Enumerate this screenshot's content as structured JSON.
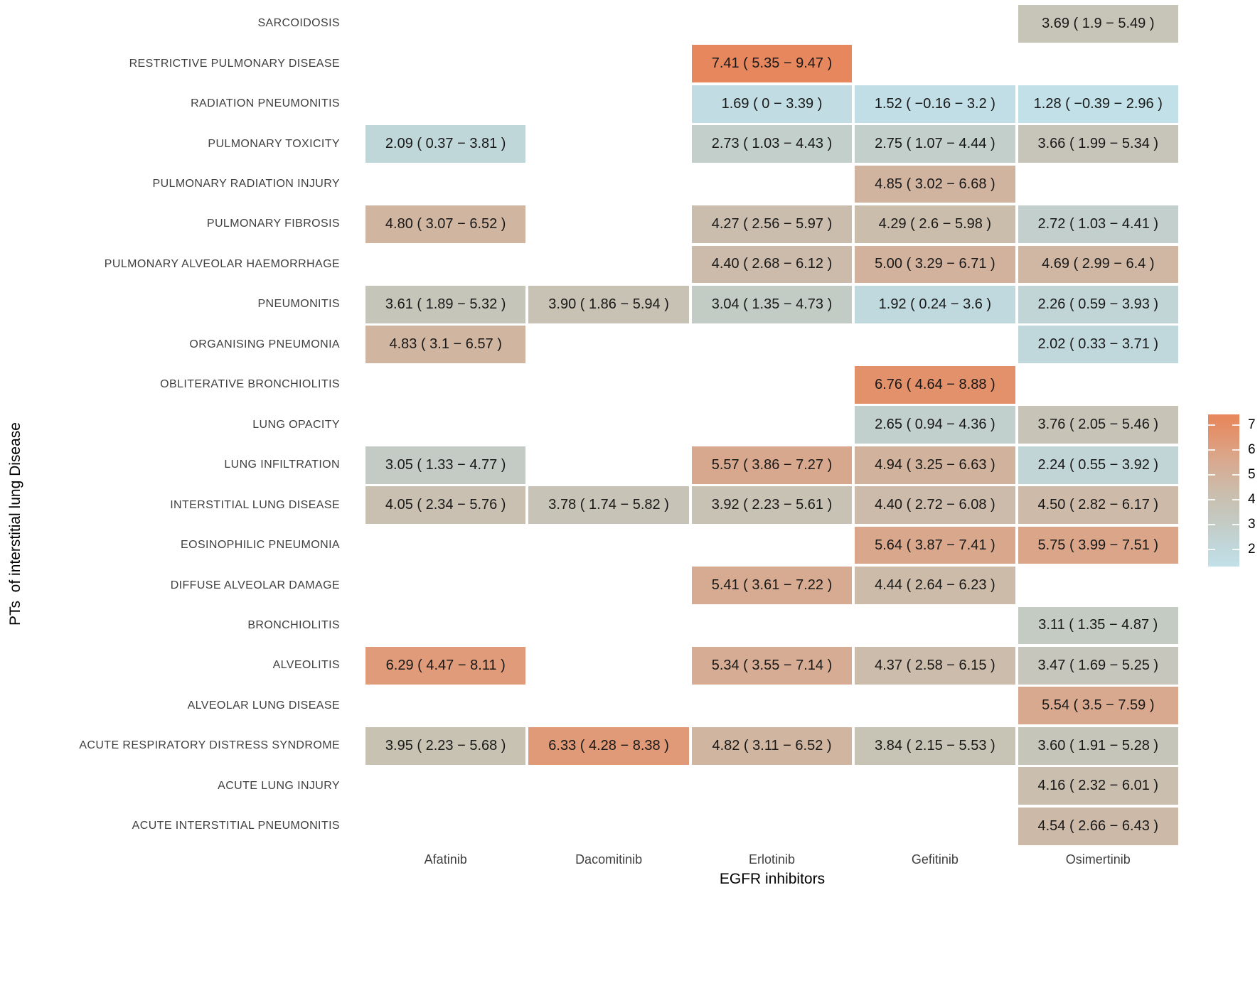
{
  "figure": {
    "x_axis_title": "EGFR inhibitors",
    "y_axis_title": "PTs  of interstitial lung Disease"
  },
  "chart_data": {
    "type": "heatmap",
    "title": "",
    "xlabel": "EGFR inhibitors",
    "ylabel": "PTs  of interstitial lung Disease",
    "columns": [
      "Afatinib",
      "Dacomitinib",
      "Erlotinib",
      "Gefitinib",
      "Osimertinib"
    ],
    "rows": [
      "SARCOIDOSIS",
      "RESTRICTIVE PULMONARY DISEASE",
      "RADIATION PNEUMONITIS",
      "PULMONARY TOXICITY",
      "PULMONARY RADIATION INJURY",
      "PULMONARY FIBROSIS",
      "PULMONARY ALVEOLAR HAEMORRHAGE",
      "PNEUMONITIS",
      "ORGANISING PNEUMONIA",
      "OBLITERATIVE BRONCHIOLITIS",
      "LUNG OPACITY",
      "LUNG INFILTRATION",
      "INTERSTITIAL LUNG DISEASE",
      "EOSINOPHILIC PNEUMONIA",
      "DIFFUSE ALVEOLAR DAMAGE",
      "BRONCHIOLITIS",
      "ALVEOLITIS",
      "ALVEOLAR LUNG DISEASE",
      "ACUTE RESPIRATORY DISTRESS SYNDROME",
      "ACUTE LUNG INJURY",
      "ACUTE INTERSTITIAL PNEUMONITIS"
    ],
    "legend": {
      "position": "right",
      "orientation": "vertical",
      "ticks": [
        7,
        6,
        5,
        4,
        3,
        2
      ],
      "value_top": 7.44,
      "value_bottom": 1.32
    },
    "colormap": [
      [
        1.3,
        "#c2e0e8"
      ],
      [
        1.5,
        "#c1dee6"
      ],
      [
        2.0,
        "#c0d8dc"
      ],
      [
        2.5,
        "#c2d2d1"
      ],
      [
        3.0,
        "#c3ccc5"
      ],
      [
        3.5,
        "#c6c6bc"
      ],
      [
        4.0,
        "#c8c1b2"
      ],
      [
        4.5,
        "#cdbaa8"
      ],
      [
        5.0,
        "#d2b29c"
      ],
      [
        6.0,
        "#dda183"
      ],
      [
        7.0,
        "#e58c63"
      ],
      [
        7.5,
        "#e8865c"
      ]
    ],
    "cells": [
      {
        "row": "SARCOIDOSIS",
        "col": "Osimertinib",
        "value": 3.69,
        "ci_low": 1.9,
        "ci_high": 5.49,
        "label": "3.69 ( 1.9 − 5.49 )"
      },
      {
        "row": "RESTRICTIVE PULMONARY DISEASE",
        "col": "Erlotinib",
        "value": 7.41,
        "ci_low": 5.35,
        "ci_high": 9.47,
        "label": "7.41 ( 5.35 − 9.47 )"
      },
      {
        "row": "RADIATION PNEUMONITIS",
        "col": "Erlotinib",
        "value": 1.69,
        "ci_low": 0,
        "ci_high": 3.39,
        "label": "1.69 ( 0 − 3.39 )"
      },
      {
        "row": "RADIATION PNEUMONITIS",
        "col": "Gefitinib",
        "value": 1.52,
        "ci_low": -0.16,
        "ci_high": 3.2,
        "label": "1.52 ( −0.16 − 3.2 )"
      },
      {
        "row": "RADIATION PNEUMONITIS",
        "col": "Osimertinib",
        "value": 1.28,
        "ci_low": -0.39,
        "ci_high": 2.96,
        "label": "1.28 ( −0.39 − 2.96 )"
      },
      {
        "row": "PULMONARY TOXICITY",
        "col": "Afatinib",
        "value": 2.09,
        "ci_low": 0.37,
        "ci_high": 3.81,
        "label": "2.09 ( 0.37 − 3.81 )"
      },
      {
        "row": "PULMONARY TOXICITY",
        "col": "Erlotinib",
        "value": 2.73,
        "ci_low": 1.03,
        "ci_high": 4.43,
        "label": "2.73 ( 1.03 − 4.43 )"
      },
      {
        "row": "PULMONARY TOXICITY",
        "col": "Gefitinib",
        "value": 2.75,
        "ci_low": 1.07,
        "ci_high": 4.44,
        "label": "2.75 ( 1.07 − 4.44 )"
      },
      {
        "row": "PULMONARY TOXICITY",
        "col": "Osimertinib",
        "value": 3.66,
        "ci_low": 1.99,
        "ci_high": 5.34,
        "label": "3.66 ( 1.99 − 5.34 )"
      },
      {
        "row": "PULMONARY RADIATION INJURY",
        "col": "Gefitinib",
        "value": 4.85,
        "ci_low": 3.02,
        "ci_high": 6.68,
        "label": "4.85 ( 3.02 − 6.68 )"
      },
      {
        "row": "PULMONARY FIBROSIS",
        "col": "Afatinib",
        "value": 4.8,
        "ci_low": 3.07,
        "ci_high": 6.52,
        "label": "4.80 ( 3.07 − 6.52 )"
      },
      {
        "row": "PULMONARY FIBROSIS",
        "col": "Erlotinib",
        "value": 4.27,
        "ci_low": 2.56,
        "ci_high": 5.97,
        "label": "4.27 ( 2.56 − 5.97 )"
      },
      {
        "row": "PULMONARY FIBROSIS",
        "col": "Gefitinib",
        "value": 4.29,
        "ci_low": 2.6,
        "ci_high": 5.98,
        "label": "4.29 ( 2.6 − 5.98 )"
      },
      {
        "row": "PULMONARY FIBROSIS",
        "col": "Osimertinib",
        "value": 2.72,
        "ci_low": 1.03,
        "ci_high": 4.41,
        "label": "2.72 ( 1.03 − 4.41 )"
      },
      {
        "row": "PULMONARY ALVEOLAR HAEMORRHAGE",
        "col": "Erlotinib",
        "value": 4.4,
        "ci_low": 2.68,
        "ci_high": 6.12,
        "label": "4.40 ( 2.68 − 6.12 )"
      },
      {
        "row": "PULMONARY ALVEOLAR HAEMORRHAGE",
        "col": "Gefitinib",
        "value": 5.0,
        "ci_low": 3.29,
        "ci_high": 6.71,
        "label": "5.00 ( 3.29 − 6.71 )"
      },
      {
        "row": "PULMONARY ALVEOLAR HAEMORRHAGE",
        "col": "Osimertinib",
        "value": 4.69,
        "ci_low": 2.99,
        "ci_high": 6.4,
        "label": "4.69 ( 2.99 − 6.4 )"
      },
      {
        "row": "PNEUMONITIS",
        "col": "Afatinib",
        "value": 3.61,
        "ci_low": 1.89,
        "ci_high": 5.32,
        "label": "3.61 ( 1.89 − 5.32 )"
      },
      {
        "row": "PNEUMONITIS",
        "col": "Dacomitinib",
        "value": 3.9,
        "ci_low": 1.86,
        "ci_high": 5.94,
        "label": "3.90 ( 1.86 − 5.94 )"
      },
      {
        "row": "PNEUMONITIS",
        "col": "Erlotinib",
        "value": 3.04,
        "ci_low": 1.35,
        "ci_high": 4.73,
        "label": "3.04 ( 1.35 − 4.73 )"
      },
      {
        "row": "PNEUMONITIS",
        "col": "Gefitinib",
        "value": 1.92,
        "ci_low": 0.24,
        "ci_high": 3.6,
        "label": "1.92 ( 0.24 − 3.6 )"
      },
      {
        "row": "PNEUMONITIS",
        "col": "Osimertinib",
        "value": 2.26,
        "ci_low": 0.59,
        "ci_high": 3.93,
        "label": "2.26 ( 0.59 − 3.93 )"
      },
      {
        "row": "ORGANISING PNEUMONIA",
        "col": "Afatinib",
        "value": 4.83,
        "ci_low": 3.1,
        "ci_high": 6.57,
        "label": "4.83 ( 3.1 − 6.57 )"
      },
      {
        "row": "ORGANISING PNEUMONIA",
        "col": "Osimertinib",
        "value": 2.02,
        "ci_low": 0.33,
        "ci_high": 3.71,
        "label": "2.02 ( 0.33 − 3.71 )"
      },
      {
        "row": "OBLITERATIVE BRONCHIOLITIS",
        "col": "Gefitinib",
        "value": 6.76,
        "ci_low": 4.64,
        "ci_high": 8.88,
        "label": "6.76 ( 4.64 − 8.88 )"
      },
      {
        "row": "LUNG OPACITY",
        "col": "Gefitinib",
        "value": 2.65,
        "ci_low": 0.94,
        "ci_high": 4.36,
        "label": "2.65 ( 0.94 − 4.36 )"
      },
      {
        "row": "LUNG OPACITY",
        "col": "Osimertinib",
        "value": 3.76,
        "ci_low": 2.05,
        "ci_high": 5.46,
        "label": "3.76 ( 2.05 − 5.46 )"
      },
      {
        "row": "LUNG INFILTRATION",
        "col": "Afatinib",
        "value": 3.05,
        "ci_low": 1.33,
        "ci_high": 4.77,
        "label": "3.05 ( 1.33 − 4.77 )"
      },
      {
        "row": "LUNG INFILTRATION",
        "col": "Erlotinib",
        "value": 5.57,
        "ci_low": 3.86,
        "ci_high": 7.27,
        "label": "5.57 ( 3.86 − 7.27 )"
      },
      {
        "row": "LUNG INFILTRATION",
        "col": "Gefitinib",
        "value": 4.94,
        "ci_low": 3.25,
        "ci_high": 6.63,
        "label": "4.94 ( 3.25 − 6.63 )"
      },
      {
        "row": "LUNG INFILTRATION",
        "col": "Osimertinib",
        "value": 2.24,
        "ci_low": 0.55,
        "ci_high": 3.92,
        "label": "2.24 ( 0.55 − 3.92 )"
      },
      {
        "row": "INTERSTITIAL LUNG DISEASE",
        "col": "Afatinib",
        "value": 4.05,
        "ci_low": 2.34,
        "ci_high": 5.76,
        "label": "4.05 ( 2.34 − 5.76 )"
      },
      {
        "row": "INTERSTITIAL LUNG DISEASE",
        "col": "Dacomitinib",
        "value": 3.78,
        "ci_low": 1.74,
        "ci_high": 5.82,
        "label": "3.78 ( 1.74 − 5.82 )"
      },
      {
        "row": "INTERSTITIAL LUNG DISEASE",
        "col": "Erlotinib",
        "value": 3.92,
        "ci_low": 2.23,
        "ci_high": 5.61,
        "label": "3.92 ( 2.23 − 5.61 )"
      },
      {
        "row": "INTERSTITIAL LUNG DISEASE",
        "col": "Gefitinib",
        "value": 4.4,
        "ci_low": 2.72,
        "ci_high": 6.08,
        "label": "4.40 ( 2.72 − 6.08 )"
      },
      {
        "row": "INTERSTITIAL LUNG DISEASE",
        "col": "Osimertinib",
        "value": 4.5,
        "ci_low": 2.82,
        "ci_high": 6.17,
        "label": "4.50 ( 2.82 − 6.17 )"
      },
      {
        "row": "EOSINOPHILIC PNEUMONIA",
        "col": "Gefitinib",
        "value": 5.64,
        "ci_low": 3.87,
        "ci_high": 7.41,
        "label": "5.64 ( 3.87 − 7.41 )"
      },
      {
        "row": "EOSINOPHILIC PNEUMONIA",
        "col": "Osimertinib",
        "value": 5.75,
        "ci_low": 3.99,
        "ci_high": 7.51,
        "label": "5.75 ( 3.99 − 7.51 )"
      },
      {
        "row": "DIFFUSE ALVEOLAR DAMAGE",
        "col": "Erlotinib",
        "value": 5.41,
        "ci_low": 3.61,
        "ci_high": 7.22,
        "label": "5.41 ( 3.61 − 7.22 )"
      },
      {
        "row": "DIFFUSE ALVEOLAR DAMAGE",
        "col": "Gefitinib",
        "value": 4.44,
        "ci_low": 2.64,
        "ci_high": 6.23,
        "label": "4.44 ( 2.64 − 6.23 )"
      },
      {
        "row": "BRONCHIOLITIS",
        "col": "Osimertinib",
        "value": 3.11,
        "ci_low": 1.35,
        "ci_high": 4.87,
        "label": "3.11 ( 1.35 − 4.87 )"
      },
      {
        "row": "ALVEOLITIS",
        "col": "Afatinib",
        "value": 6.29,
        "ci_low": 4.47,
        "ci_high": 8.11,
        "label": "6.29 ( 4.47 − 8.11 )"
      },
      {
        "row": "ALVEOLITIS",
        "col": "Erlotinib",
        "value": 5.34,
        "ci_low": 3.55,
        "ci_high": 7.14,
        "label": "5.34 ( 3.55 − 7.14 )"
      },
      {
        "row": "ALVEOLITIS",
        "col": "Gefitinib",
        "value": 4.37,
        "ci_low": 2.58,
        "ci_high": 6.15,
        "label": "4.37 ( 2.58 − 6.15 )"
      },
      {
        "row": "ALVEOLITIS",
        "col": "Osimertinib",
        "value": 3.47,
        "ci_low": 1.69,
        "ci_high": 5.25,
        "label": "3.47 ( 1.69 − 5.25 )"
      },
      {
        "row": "ALVEOLAR LUNG DISEASE",
        "col": "Osimertinib",
        "value": 5.54,
        "ci_low": 3.5,
        "ci_high": 7.59,
        "label": "5.54 ( 3.5 − 7.59 )"
      },
      {
        "row": "ACUTE RESPIRATORY DISTRESS SYNDROME",
        "col": "Afatinib",
        "value": 3.95,
        "ci_low": 2.23,
        "ci_high": 5.68,
        "label": "3.95 ( 2.23 − 5.68 )"
      },
      {
        "row": "ACUTE RESPIRATORY DISTRESS SYNDROME",
        "col": "Dacomitinib",
        "value": 6.33,
        "ci_low": 4.28,
        "ci_high": 8.38,
        "label": "6.33 ( 4.28 − 8.38 )"
      },
      {
        "row": "ACUTE RESPIRATORY DISTRESS SYNDROME",
        "col": "Erlotinib",
        "value": 4.82,
        "ci_low": 3.11,
        "ci_high": 6.52,
        "label": "4.82 ( 3.11 − 6.52 )"
      },
      {
        "row": "ACUTE RESPIRATORY DISTRESS SYNDROME",
        "col": "Gefitinib",
        "value": 3.84,
        "ci_low": 2.15,
        "ci_high": 5.53,
        "label": "3.84 ( 2.15 − 5.53 )"
      },
      {
        "row": "ACUTE RESPIRATORY DISTRESS SYNDROME",
        "col": "Osimertinib",
        "value": 3.6,
        "ci_low": 1.91,
        "ci_high": 5.28,
        "label": "3.60 ( 1.91 − 5.28 )"
      },
      {
        "row": "ACUTE LUNG INJURY",
        "col": "Osimertinib",
        "value": 4.16,
        "ci_low": 2.32,
        "ci_high": 6.01,
        "label": "4.16 ( 2.32 − 6.01 )"
      },
      {
        "row": "ACUTE INTERSTITIAL PNEUMONITIS",
        "col": "Osimertinib",
        "value": 4.54,
        "ci_low": 2.66,
        "ci_high": 6.43,
        "label": "4.54 ( 2.66 − 6.43 )"
      }
    ]
  }
}
